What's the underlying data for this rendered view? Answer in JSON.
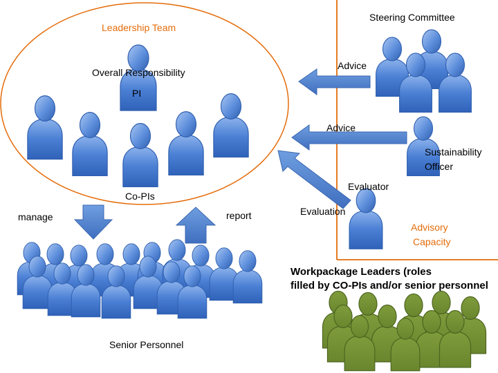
{
  "leadership": {
    "title": "Leadership Team",
    "overall_responsibility": "Overall Responsibility",
    "pi": "PI",
    "co_pis": "Co-PIs"
  },
  "flows": {
    "manage": "manage",
    "report": "report",
    "advice_steering": "Advice",
    "advice_sustainability": "Advice",
    "evaluation": "Evaluation"
  },
  "roles": {
    "steering_committee": "Steering Committee",
    "sustainability_officer_line1": "Sustainability",
    "sustainability_officer_line2": "Officer",
    "evaluator": "Evaluator",
    "advisory_line1": "Advisory",
    "advisory_line2": "Capacity",
    "senior_personnel": "Senior Personnel",
    "workpackage_line1": "Workpackage Leaders (roles",
    "workpackage_line2": "filled by CO-PIs and/or senior personnel"
  },
  "colors": {
    "person_blue": "#4a7fd4",
    "person_green": "#6f8c33",
    "accent_orange": "#e46c0a",
    "arrow_blue": "#4f81bd"
  }
}
